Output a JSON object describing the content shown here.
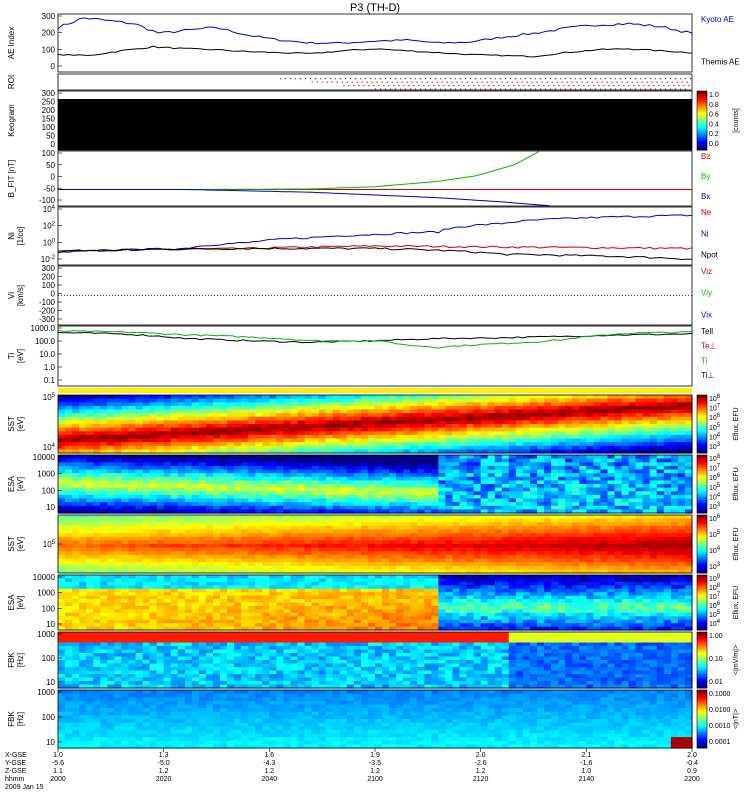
{
  "title": "P3 (TH-D)",
  "colors": {
    "blue": "#0000cc",
    "red": "#cc0000",
    "green": "#00bb00",
    "black": "#000000"
  },
  "chart_data": [
    {
      "type": "line",
      "ylabel": "AE Index",
      "yticks": [
        "300",
        "200",
        "100",
        "0"
      ],
      "ylim": [
        0,
        300
      ],
      "series": [
        {
          "name": "Kyoto AE",
          "color": "#0000cc",
          "x": [
            0,
            0.04,
            0.08,
            0.12,
            0.16,
            0.2,
            0.25,
            0.3,
            0.35,
            0.4,
            0.45,
            0.5,
            0.55,
            0.6,
            0.65,
            0.7,
            0.75,
            0.8,
            0.85,
            0.9,
            0.95,
            1.0
          ],
          "values": [
            230,
            280,
            265,
            250,
            200,
            215,
            230,
            190,
            165,
            150,
            150,
            160,
            165,
            150,
            155,
            180,
            200,
            225,
            245,
            250,
            235,
            200
          ]
        },
        {
          "name": "Themis AE",
          "color": "#000000",
          "x": [
            0,
            0.05,
            0.1,
            0.15,
            0.2,
            0.25,
            0.3,
            0.35,
            0.4,
            0.45,
            0.5,
            0.55,
            0.6,
            0.65,
            0.7,
            0.75,
            0.8,
            0.85,
            0.9,
            0.95,
            1.0
          ],
          "values": [
            90,
            85,
            110,
            130,
            120,
            115,
            105,
            100,
            95,
            110,
            120,
            110,
            100,
            90,
            85,
            80,
            100,
            115,
            120,
            110,
            100
          ]
        }
      ]
    },
    {
      "type": "scatter",
      "ylabel": "ROI",
      "note_series": "red dotted flags",
      "x_start": 0.35
    },
    {
      "type": "heatmap",
      "ylabel": "Keogram",
      "yticks": [
        "300",
        "250",
        "200",
        "150",
        "100",
        "50",
        "0"
      ],
      "colorbar": {
        "ticks": [
          "1.0",
          "0.8",
          "0.6",
          "0.4",
          "0.2",
          "0.0"
        ],
        "label": "[counts]"
      }
    },
    {
      "type": "line",
      "ylabel": "B_FIT [nT]",
      "yticks": [
        "100",
        "50",
        "0",
        "-50",
        "-100"
      ],
      "ylim": [
        -100,
        100
      ],
      "series": [
        {
          "name": "Bz",
          "color": "#cc0000",
          "x": [
            0,
            1
          ],
          "values": [
            -40,
            -40
          ]
        },
        {
          "name": "By",
          "color": "#00bb00",
          "x": [
            0,
            0.2,
            0.4,
            0.5,
            0.6,
            0.66,
            0.72,
            0.76
          ],
          "values": [
            -40,
            -40,
            -38,
            -30,
            -10,
            10,
            50,
            100
          ]
        },
        {
          "name": "Bx",
          "color": "#0000cc",
          "x": [
            0,
            0.2,
            0.4,
            0.5,
            0.6,
            0.7,
            0.78
          ],
          "values": [
            -40,
            -40,
            -50,
            -60,
            -70,
            -85,
            -100
          ]
        }
      ]
    },
    {
      "type": "line",
      "ylabel": "Ni",
      "yunit": "[1/cc]",
      "log": true,
      "yticks": [
        "10^4",
        "10^2",
        "10^0",
        "10^-2"
      ],
      "series": [
        {
          "name": "Ne",
          "color": "#cc0000",
          "x": [
            0,
            0.3,
            0.5,
            0.7,
            1.0
          ],
          "values": [
            0.5,
            1,
            2,
            1.5,
            1
          ]
        },
        {
          "name": "Ni",
          "color": "#0000cc",
          "x": [
            0,
            0.2,
            0.3,
            0.4,
            0.5,
            0.6,
            0.7,
            1.0
          ],
          "values": [
            0.3,
            1,
            5,
            20,
            50,
            100,
            1000,
            10000
          ]
        },
        {
          "name": "Npot",
          "color": "#000000",
          "x": [
            0,
            0.3,
            0.5,
            0.7,
            1.0
          ],
          "values": [
            0.5,
            1,
            1,
            0.2,
            0.05
          ]
        }
      ]
    },
    {
      "type": "line",
      "ylabel": "Vi",
      "yunit": "[km/s]",
      "yticks": [
        "300",
        "200",
        "100",
        "0",
        "-100",
        "-200",
        "-300"
      ],
      "ylim": [
        -300,
        300
      ],
      "series": [
        {
          "name": "Viz",
          "color": "#cc0000"
        },
        {
          "name": "Viy",
          "color": "#00bb00"
        },
        {
          "name": "Vix",
          "color": "#0000cc"
        }
      ]
    },
    {
      "type": "line",
      "ylabel": "Ti",
      "yunit": "[eV]",
      "log": true,
      "yticks": [
        "1000.0",
        "100.0",
        "10.0",
        "1.0",
        "0.1"
      ],
      "ylim": [
        0.05,
        3000
      ],
      "series": [
        {
          "name": "Tell",
          "color": "#000000",
          "x": [
            0,
            0.1,
            0.2,
            0.3,
            0.4,
            0.5,
            0.6,
            0.7,
            0.8,
            0.9,
            1.0
          ],
          "values": [
            900,
            700,
            300,
            200,
            150,
            200,
            300,
            350,
            450,
            600,
            700
          ]
        },
        {
          "name": "Te⊥",
          "color": "#cc0000"
        },
        {
          "name": "Ti",
          "color": "#00bb00",
          "x": [
            0,
            0.1,
            0.2,
            0.3,
            0.4,
            0.5,
            0.55,
            0.6,
            0.65,
            0.7,
            0.75,
            0.8,
            0.85,
            0.9,
            1.0
          ],
          "values": [
            1200,
            1000,
            600,
            400,
            200,
            200,
            90,
            60,
            90,
            120,
            160,
            250,
            500,
            800,
            1000
          ]
        },
        {
          "name": "Ti⊥",
          "color": "#0000cc"
        }
      ]
    },
    {
      "type": "heatmap",
      "ylabel": "SST",
      "yunit": "[eV]",
      "yticks": [
        "10^5",
        "10^4"
      ],
      "colorbar": {
        "ticks": [
          "10^8",
          "10^7",
          "10^6",
          "10^5",
          "10^4",
          "10^3"
        ],
        "label": "Eflux, EFU"
      }
    },
    {
      "type": "heatmap",
      "ylabel": "ESA",
      "yunit": "[eV]",
      "yticks": [
        "10000",
        "1000",
        "100",
        "10"
      ],
      "colorbar": {
        "ticks": [
          "10^8",
          "10^7",
          "10^6",
          "10^5",
          "10^4",
          "10^3"
        ],
        "label": "Eflux, EFU"
      }
    },
    {
      "type": "heatmap",
      "ylabel": "SST",
      "yunit": "[eV]",
      "yticks": [
        "10^5"
      ],
      "colorbar": {
        "ticks": [
          "10^6",
          "10^5",
          "10^4",
          "10^3"
        ],
        "label": "Eflux, EFU"
      }
    },
    {
      "type": "heatmap",
      "ylabel": "ESA",
      "yunit": "[eV]",
      "yticks": [
        "10000",
        "1000",
        "100",
        "10"
      ],
      "colorbar": {
        "ticks": [
          "10^9",
          "10^8",
          "10^7",
          "10^6",
          "10^5",
          "10^4"
        ],
        "label": "Eflux, EFU"
      }
    },
    {
      "type": "heatmap",
      "ylabel": "FBK",
      "yunit": "[Hz]",
      "yticks": [
        "1000",
        "100",
        "10"
      ],
      "colorbar": {
        "ticks": [
          "1.00",
          "0.10",
          "0.01"
        ],
        "label": "<|mV/m|>"
      }
    },
    {
      "type": "heatmap",
      "ylabel": "FBK",
      "yunit": "[Hz]",
      "yticks": [
        "1000",
        "100",
        "10"
      ],
      "colorbar": {
        "ticks": [
          "0.1000",
          "0.0100",
          "0.0010",
          "0.0001"
        ],
        "label": "<|nT|>"
      }
    }
  ],
  "xaxis": {
    "row_labels": [
      "X-GSE",
      "Y-GSE",
      "Z-GSE",
      "hhmm",
      "2009 Jan 15"
    ],
    "ticks": [
      {
        "x": [
          "1.0",
          "-5.6",
          "1.1",
          "2000"
        ]
      },
      {
        "x": [
          "1.3",
          "-5.0",
          "1.2",
          "2020"
        ]
      },
      {
        "x": [
          "1.6",
          "-4.3",
          "1.2",
          "2040"
        ]
      },
      {
        "x": [
          "1.9",
          "-3.5",
          "1.2",
          "2100"
        ]
      },
      {
        "x": [
          "2.0",
          "-2.6",
          "1.2",
          "2120"
        ]
      },
      {
        "x": [
          "2.1",
          "-1.6",
          "1.0",
          "2140"
        ]
      },
      {
        "x": [
          "2.0",
          "-0.4",
          "0.9",
          "2200"
        ]
      }
    ]
  }
}
